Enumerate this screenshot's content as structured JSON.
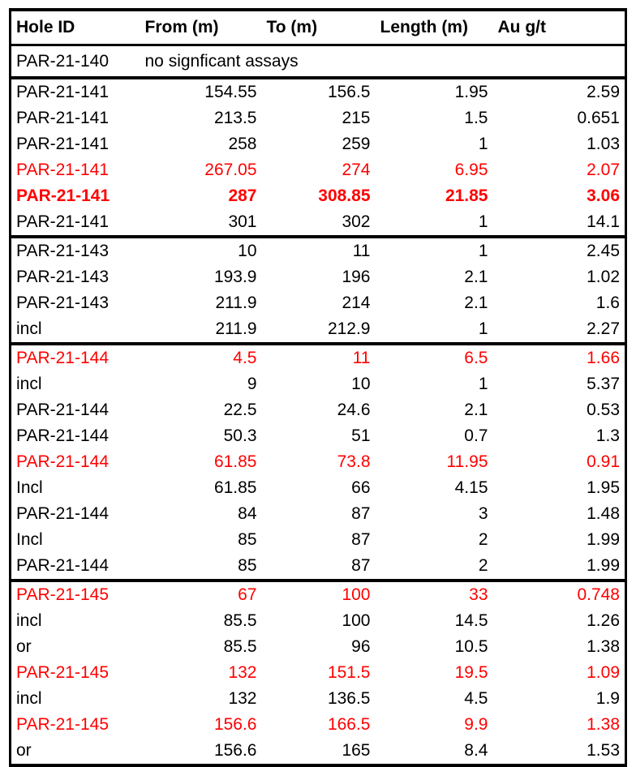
{
  "table": {
    "headers": [
      "Hole ID",
      "From (m)",
      "To (m)",
      "Length (m)",
      "Au g/t"
    ],
    "note_row": {
      "hole": "PAR-21-140",
      "text": "no signficant assays"
    },
    "groups": [
      {
        "rows": [
          {
            "hole": "PAR-21-141",
            "from": "154.55",
            "to": "156.5",
            "length": "1.95",
            "au": "2.59",
            "color": "black",
            "bold": false
          },
          {
            "hole": "PAR-21-141",
            "from": "213.5",
            "to": "215",
            "length": "1.5",
            "au": "0.651",
            "color": "black",
            "bold": false
          },
          {
            "hole": "PAR-21-141",
            "from": "258",
            "to": "259",
            "length": "1",
            "au": "1.03",
            "color": "black",
            "bold": false
          },
          {
            "hole": "PAR-21-141",
            "from": "267.05",
            "to": "274",
            "length": "6.95",
            "au": "2.07",
            "color": "red",
            "bold": false
          },
          {
            "hole": "PAR-21-141",
            "from": "287",
            "to": "308.85",
            "length": "21.85",
            "au": "3.06",
            "color": "red",
            "bold": true
          },
          {
            "hole": "PAR-21-141",
            "from": "301",
            "to": "302",
            "length": "1",
            "au": "14.1",
            "color": "black",
            "bold": false
          }
        ]
      },
      {
        "rows": [
          {
            "hole": "PAR-21-143",
            "from": "10",
            "to": "11",
            "length": "1",
            "au": "2.45",
            "color": "black",
            "bold": false
          },
          {
            "hole": "PAR-21-143",
            "from": "193.9",
            "to": "196",
            "length": "2.1",
            "au": "1.02",
            "color": "black",
            "bold": false
          },
          {
            "hole": "PAR-21-143",
            "from": "211.9",
            "to": "214",
            "length": "2.1",
            "au": "1.6",
            "color": "black",
            "bold": false
          },
          {
            "hole": "incl",
            "from": "211.9",
            "to": "212.9",
            "length": "1",
            "au": "2.27",
            "color": "black",
            "bold": false
          }
        ]
      },
      {
        "rows": [
          {
            "hole": "PAR-21-144",
            "from": "4.5",
            "to": "11",
            "length": "6.5",
            "au": "1.66",
            "color": "red",
            "bold": false
          },
          {
            "hole": "incl",
            "from": "9",
            "to": "10",
            "length": "1",
            "au": "5.37",
            "color": "black",
            "bold": false
          },
          {
            "hole": "PAR-21-144",
            "from": "22.5",
            "to": "24.6",
            "length": "2.1",
            "au": "0.53",
            "color": "black",
            "bold": false
          },
          {
            "hole": "PAR-21-144",
            "from": "50.3",
            "to": "51",
            "length": "0.7",
            "au": "1.3",
            "color": "black",
            "bold": false
          },
          {
            "hole": "PAR-21-144",
            "from": "61.85",
            "to": "73.8",
            "length": "11.95",
            "au": "0.91",
            "color": "red",
            "bold": false
          },
          {
            "hole": "Incl",
            "from": "61.85",
            "to": "66",
            "length": "4.15",
            "au": "1.95",
            "color": "black",
            "bold": false
          },
          {
            "hole": "PAR-21-144",
            "from": "84",
            "to": "87",
            "length": "3",
            "au": "1.48",
            "color": "black",
            "bold": false
          },
          {
            "hole": "Incl",
            "from": "85",
            "to": "87",
            "length": "2",
            "au": "1.99",
            "color": "black",
            "bold": false
          },
          {
            "hole": "PAR-21-144",
            "from": "85",
            "to": "87",
            "length": "2",
            "au": "1.99",
            "color": "black",
            "bold": false
          }
        ]
      },
      {
        "rows": [
          {
            "hole": "PAR-21-145",
            "from": "67",
            "to": "100",
            "length": "33",
            "au": "0.748",
            "color": "red",
            "bold": false
          },
          {
            "hole": "incl",
            "from": "85.5",
            "to": "100",
            "length": "14.5",
            "au": "1.26",
            "color": "black",
            "bold": false
          },
          {
            "hole": "or",
            "from": "85.5",
            "to": "96",
            "length": "10.5",
            "au": "1.38",
            "color": "black",
            "bold": false
          },
          {
            "hole": "PAR-21-145",
            "from": "132",
            "to": "151.5",
            "length": "19.5",
            "au": "1.09",
            "color": "red",
            "bold": false
          },
          {
            "hole": "incl",
            "from": "132",
            "to": "136.5",
            "length": "4.5",
            "au": "1.9",
            "color": "black",
            "bold": false
          },
          {
            "hole": "PAR-21-145",
            "from": "156.6",
            "to": "166.5",
            "length": "9.9",
            "au": "1.38",
            "color": "red",
            "bold": false
          },
          {
            "hole": "or",
            "from": "156.6",
            "to": "165",
            "length": "8.4",
            "au": "1.53",
            "color": "black",
            "bold": false
          }
        ]
      }
    ],
    "colors": {
      "highlight": "#ff0000",
      "text": "#000000",
      "border": "#000000"
    }
  }
}
